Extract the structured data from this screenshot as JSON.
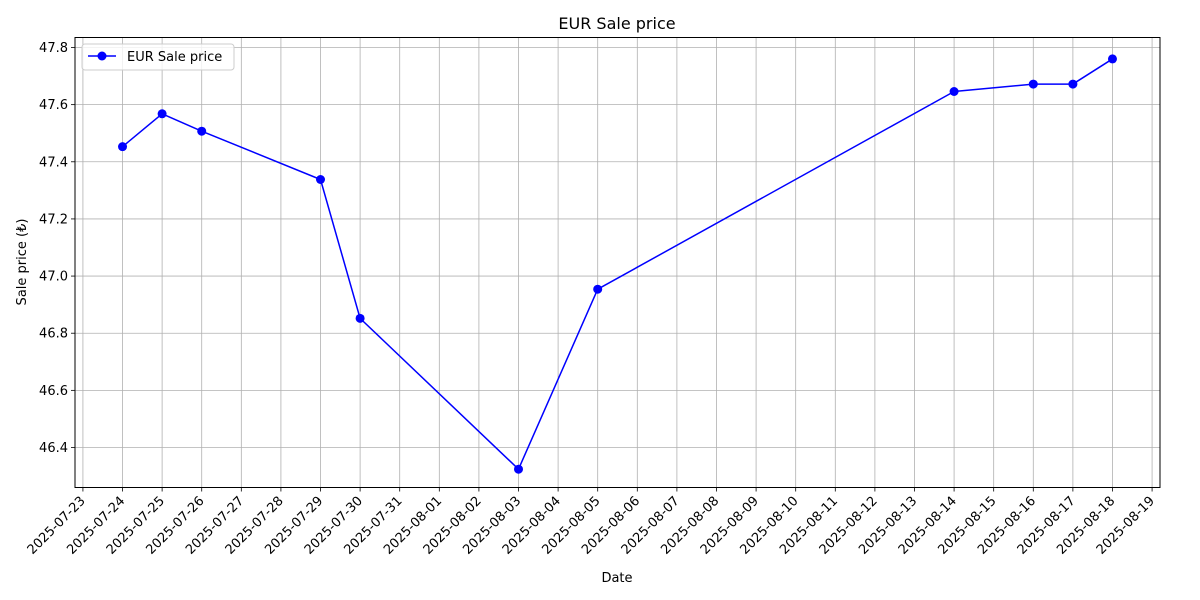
{
  "chart_data": {
    "type": "line",
    "title": "EUR Sale price",
    "xlabel": "Date",
    "ylabel": "Sale price (₺)",
    "grid": true,
    "legend_position": "top-left",
    "series": [
      {
        "name": "EUR Sale price",
        "color": "#0000ff",
        "marker": "circle",
        "points": [
          {
            "x": "2025-07-24",
            "y": 47.453
          },
          {
            "x": "2025-07-25",
            "y": 47.568
          },
          {
            "x": "2025-07-26",
            "y": 47.507
          },
          {
            "x": "2025-07-29",
            "y": 47.338
          },
          {
            "x": "2025-07-30",
            "y": 46.852
          },
          {
            "x": "2025-08-03",
            "y": 46.324
          },
          {
            "x": "2025-08-05",
            "y": 46.954
          },
          {
            "x": "2025-08-14",
            "y": 47.646
          },
          {
            "x": "2025-08-16",
            "y": 47.672
          },
          {
            "x": "2025-08-17",
            "y": 47.672
          },
          {
            "x": "2025-08-18",
            "y": 47.76
          }
        ]
      }
    ],
    "xlim": [
      "2025-07-23",
      "2025-08-19"
    ],
    "ylim": [
      46.26,
      47.835
    ],
    "x_ticks": [
      "2025-07-23",
      "2025-07-24",
      "2025-07-25",
      "2025-07-26",
      "2025-07-27",
      "2025-07-28",
      "2025-07-29",
      "2025-07-30",
      "2025-07-31",
      "2025-08-01",
      "2025-08-02",
      "2025-08-03",
      "2025-08-04",
      "2025-08-05",
      "2025-08-06",
      "2025-08-07",
      "2025-08-08",
      "2025-08-09",
      "2025-08-10",
      "2025-08-11",
      "2025-08-12",
      "2025-08-13",
      "2025-08-14",
      "2025-08-15",
      "2025-08-16",
      "2025-08-17",
      "2025-08-18",
      "2025-08-19"
    ],
    "y_ticks": [
      "46.4",
      "46.6",
      "46.8",
      "47.0",
      "47.2",
      "47.4",
      "47.6",
      "47.8"
    ]
  }
}
